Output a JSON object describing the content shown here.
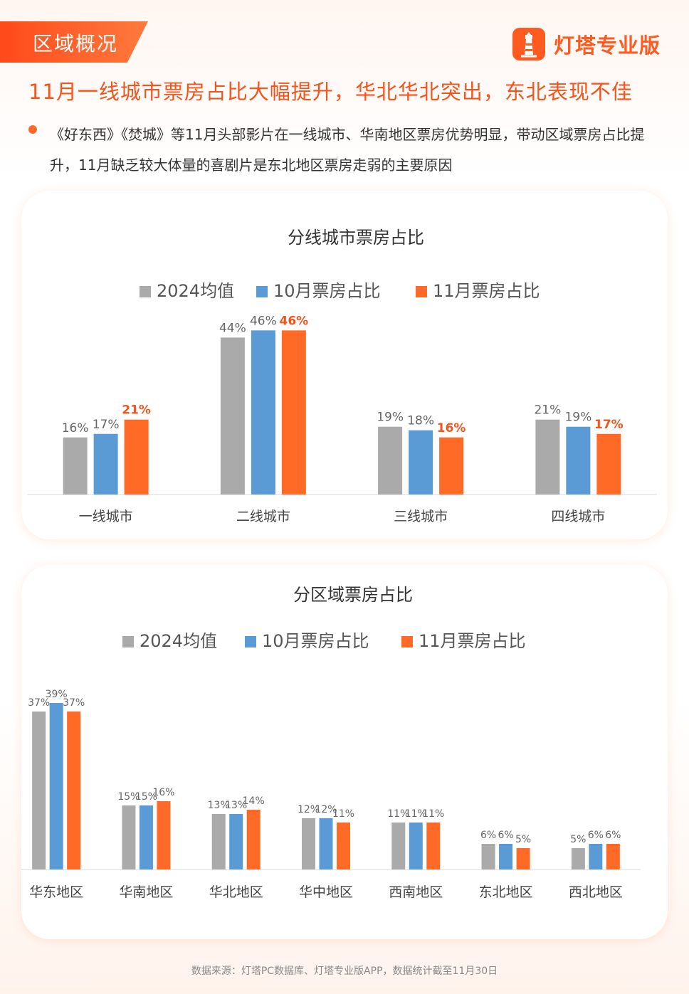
{
  "section_tag": "区域概况",
  "logo": {
    "text": "灯塔专业版",
    "icon": "lighthouse-icon",
    "color": "#ff5a20"
  },
  "headline": "11月一线城市票房占比大幅提升，华北华北突出，东北表现不佳",
  "bullet": "《好东西》《焚城》等11月头部影片在一线城市、华南地区票房优势明显，带动区域票房占比提升，11月缺乏较大体量的喜剧片是东北地区票房走弱的主要原因",
  "source": "数据来源：灯塔PC数据库、灯塔专业版APP，数据统计截至11月30日",
  "colors": {
    "gray": "#aaaaaa",
    "blue": "#5b9bd5",
    "orange": "#ff6a26",
    "highlight_label": "#f2541b"
  },
  "chart_data": [
    {
      "type": "bar",
      "title": "分线城市票房占比",
      "categories": [
        "一线城市",
        "二线城市",
        "三线城市",
        "四线城市"
      ],
      "series": [
        {
          "name": "2024均值",
          "values": [
            16,
            44,
            19,
            21
          ],
          "labels": [
            "16%",
            "44%",
            "19%",
            "21%"
          ]
        },
        {
          "name": "10月票房占比",
          "values": [
            17,
            46,
            18,
            19
          ],
          "labels": [
            "17%",
            "46%",
            "18%",
            "19%"
          ]
        },
        {
          "name": "11月票房占比",
          "values": [
            21,
            46,
            16,
            17
          ],
          "labels": [
            "21%",
            "46%",
            "16%",
            "17%"
          ]
        }
      ],
      "ylim": [
        0,
        50
      ],
      "grid": false,
      "legend_position": "top"
    },
    {
      "type": "bar",
      "title": "分区域票房占比",
      "categories": [
        "华东地区",
        "华南地区",
        "华北地区",
        "华中地区",
        "西南地区",
        "东北地区",
        "西北地区"
      ],
      "series": [
        {
          "name": "2024均值",
          "values": [
            37,
            15,
            13,
            12,
            11,
            6,
            5
          ],
          "labels": [
            "37%",
            "15%",
            "13%",
            "12%",
            "11%",
            "6%",
            "5%"
          ]
        },
        {
          "name": "10月票房占比",
          "values": [
            39,
            15,
            13,
            12,
            11,
            6,
            6
          ],
          "labels": [
            "39%",
            "15%",
            "13%",
            "12%",
            "11%",
            "6%",
            "6%"
          ]
        },
        {
          "name": "11月票房占比",
          "values": [
            37,
            16,
            14,
            11,
            11,
            5,
            6
          ],
          "labels": [
            "37%",
            "16%",
            "14%",
            "11%",
            "11%",
            "5%",
            "6%"
          ]
        }
      ],
      "ylim": [
        0,
        40
      ],
      "grid": false,
      "legend_position": "top"
    }
  ]
}
